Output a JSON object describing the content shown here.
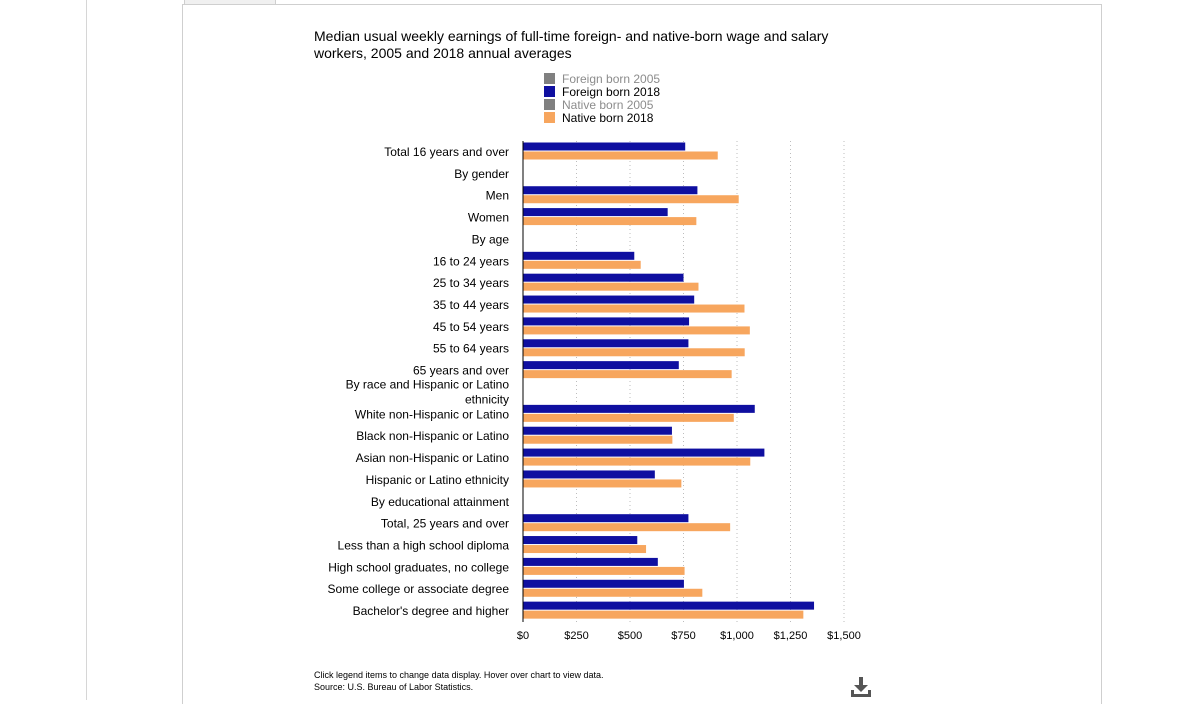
{
  "title_line1": "Median usual weekly earnings of full-time foreign- and native-born wage and salary",
  "title_line2": "workers, 2005 and 2018 annual averages",
  "legend": [
    {
      "label": "Foreign born 2005",
      "color": "#808080",
      "active": false
    },
    {
      "label": "Foreign born 2018",
      "color": "#0f0fa0",
      "active": true
    },
    {
      "label": "Native born 2005",
      "color": "#808080",
      "active": false
    },
    {
      "label": "Native born 2018",
      "color": "#f7a65e",
      "active": true
    }
  ],
  "footer": {
    "note": "Click legend items to change data display. Hover over chart to view data.",
    "source": "Source: U.S. Bureau of Labor Statistics."
  },
  "icons": {
    "download": "download-icon"
  },
  "chart_data": {
    "type": "bar",
    "orientation": "horizontal",
    "title": "Median usual weekly earnings of full-time foreign- and native-born wage and salary workers, 2005 and 2018 annual averages",
    "xlim": [
      0,
      1500
    ],
    "x_ticks": [
      "$0",
      "$250",
      "$500",
      "$750",
      "$1,000",
      "$1,250",
      "$1,500"
    ],
    "x_tick_values": [
      0,
      250,
      500,
      750,
      1000,
      1250,
      1500
    ],
    "grid": true,
    "legend_position": "top",
    "categories": [
      "Total 16 years and over",
      "By gender",
      "Men",
      "Women",
      "By age",
      "16 to 24 years",
      "25 to 34 years",
      "35 to 44 years",
      "45 to 54 years",
      "55 to 64 years",
      "65 years and over",
      "By race and Hispanic or Latino ethnicity",
      "White non-Hispanic or Latino",
      "Black non-Hispanic or Latino",
      "Asian non-Hispanic or Latino",
      "Hispanic or Latino ethnicity",
      "By educational attainment",
      "Total, 25 years and over",
      "Less than a high school diploma",
      "High school graduates, no college",
      "Some college or associate degree",
      "Bachelor's degree and higher"
    ],
    "series": [
      {
        "name": "Foreign born 2018",
        "color": "#0f0fa0",
        "values": [
          758,
          null,
          815,
          676,
          null,
          520,
          750,
          800,
          776,
          773,
          728,
          null,
          1083,
          696,
          1128,
          616,
          null,
          773,
          534,
          630,
          752,
          1360
        ]
      },
      {
        "name": "Native born 2018",
        "color": "#f7a65e",
        "values": [
          910,
          null,
          1008,
          810,
          null,
          550,
          820,
          1035,
          1060,
          1036,
          975,
          null,
          985,
          698,
          1062,
          740,
          null,
          968,
          575,
          755,
          838,
          1310
        ]
      }
    ]
  }
}
